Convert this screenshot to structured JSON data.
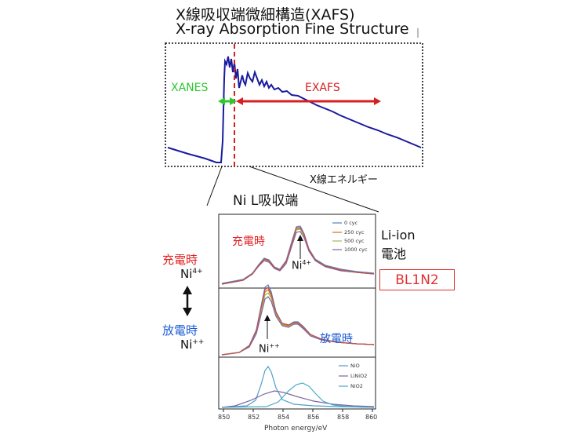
{
  "title": {
    "line1": "X線吸収端微細構造(XAFS)",
    "line2": "X-ray Absorption Fine Structure"
  },
  "top_plot": {
    "xanes_label": "XANES",
    "exafs_label": "EXAFS",
    "x_axis_label": "X線エネルギー",
    "colors": {
      "spectrum": "#1a1a9e",
      "xanes": "#2ec82e",
      "exafs": "#d42020"
    }
  },
  "zoom_title": "Ni L吸収端",
  "battery": {
    "line1": "Li-ion",
    "line2": "電池",
    "beamline": "BL1N2"
  },
  "state_legend": {
    "charged": "充電時",
    "charged_ion": "Ni",
    "charged_sup": "4+",
    "discharged": "放電時",
    "discharged_ion": "Ni",
    "discharged_sup": "++",
    "colors": {
      "charged": "#e02020",
      "discharged": "#1a5bd6"
    }
  },
  "panel": {
    "charged_label": "充電時",
    "charged_peak_ion": "Ni",
    "charged_peak_sup": "4+",
    "discharged_label": "放電時",
    "discharged_peak_ion": "Ni",
    "discharged_peak_sup": "++",
    "legend_cycles": [
      "0 cyc",
      "250 cyc",
      "500 cyc",
      "1000 cyc"
    ],
    "legend_refs": [
      "NiO",
      "LiNiO2",
      "NiO2"
    ],
    "x_ticks": [
      "850",
      "852",
      "854",
      "856",
      "858",
      "860"
    ],
    "x_axis_label": "Photon energy/eV"
  },
  "chart_data": {
    "type": "line",
    "x_range": [
      850,
      860
    ],
    "xlabel": "Photon energy/eV",
    "series": [
      {
        "name": "0 cyc",
        "color": "#4f81bd"
      },
      {
        "name": "250 cyc",
        "color": "#e46c0a"
      },
      {
        "name": "500 cyc",
        "color": "#9bbb59"
      },
      {
        "name": "1000 cyc",
        "color": "#8064a2"
      },
      {
        "name": "NiO",
        "color": "#4f9ec9"
      },
      {
        "name": "LiNiO2",
        "color": "#8064a2"
      },
      {
        "name": "NiO2",
        "color": "#4bacc6"
      }
    ]
  }
}
